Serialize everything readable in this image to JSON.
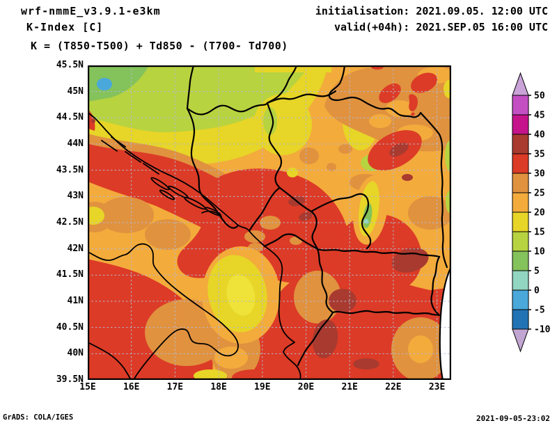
{
  "header": {
    "model": "wrf-nmmE_v3.9.1-e3km",
    "product": "K-Index [C]",
    "init": "initialisation: 2021.09.05. 12:00 UTC",
    "valid": "valid(+04h): 2021.SEP.05 16:00 UTC",
    "formula": "K = (T850-T500) + Td850 - (T700- Td700)"
  },
  "footer": {
    "credit": "GrADS: COLA/IGES",
    "created": "2021-09-05-23:02"
  },
  "map": {
    "lat_ticks": [
      "45.5N",
      "45N",
      "44.5N",
      "44N",
      "43.5N",
      "43N",
      "42.5N",
      "42N",
      "41.5N",
      "41N",
      "40.5N",
      "40N",
      "39.5N"
    ],
    "lon_ticks": [
      "15E",
      "16E",
      "17E",
      "18E",
      "19E",
      "20E",
      "21E",
      "22E",
      "23E"
    ]
  },
  "colorbar": {
    "tick_labels": [
      "50",
      "45",
      "40",
      "35",
      "30",
      "25",
      "20",
      "15",
      "10",
      "5",
      "0",
      "-5",
      "-10"
    ],
    "segment_colors_top_to_bottom": [
      "#c34fc3",
      "#c5138b",
      "#a93a30",
      "#dc3b27",
      "#e0923f",
      "#f3ab3c",
      "#e7d527",
      "#b7d340",
      "#84c25b",
      "#92d5c0",
      "#4aa8da",
      "#2273b4"
    ],
    "arrow_top_color": "#c9a3d7",
    "arrow_bottom_color": "#c2a6d2"
  },
  "palette": {
    "amber": "#f3ab3c",
    "orange": "#e0923f",
    "red": "#dc3b27",
    "darkred": "#a93a30",
    "yellow": "#e7d527",
    "yellowBright": "#efe238",
    "yellowgreen": "#b7d340",
    "green": "#84c25b",
    "seafoam": "#92d5c0",
    "lightblue": "#4aa8da",
    "blue": "#2273b4",
    "magenta": "#c5138b",
    "orchid": "#c34fc3",
    "lavender": "#c9a3d7",
    "grid": "#b3b9d1",
    "border": "#000000",
    "frame": "#000000",
    "nodata": "#ffffff"
  },
  "chart_data": {
    "type": "heatmap",
    "title": "K-Index [C]",
    "model": "wrf-nmmE_v3.9.1-e3km",
    "init_time": "2021.09.05. 12:00 UTC",
    "valid_time": "2021.SEP.05 16:00 UTC",
    "lead_hours": 4,
    "formula": "K = (T850-T500) + Td850 - (T700- Td700)",
    "units": "C",
    "x": {
      "label": "longitude",
      "ticks": [
        "15E",
        "16E",
        "17E",
        "18E",
        "19E",
        "20E",
        "21E",
        "22E",
        "23E"
      ],
      "range_deg": [
        15,
        23.35
      ]
    },
    "y": {
      "label": "latitude",
      "ticks": [
        "39.5N",
        "40N",
        "40.5N",
        "41N",
        "41.5N",
        "42N",
        "42.5N",
        "43N",
        "43.5N",
        "44N",
        "44.5N",
        "45N",
        "45.5N"
      ],
      "range_deg": [
        39.5,
        45.5
      ]
    },
    "colorbar_levels": [
      -10,
      -5,
      0,
      5,
      10,
      15,
      20,
      25,
      30,
      35,
      40,
      45,
      50
    ],
    "legend_position": "right",
    "grid": "dashed 0.5deg lat / 1deg lon"
  }
}
